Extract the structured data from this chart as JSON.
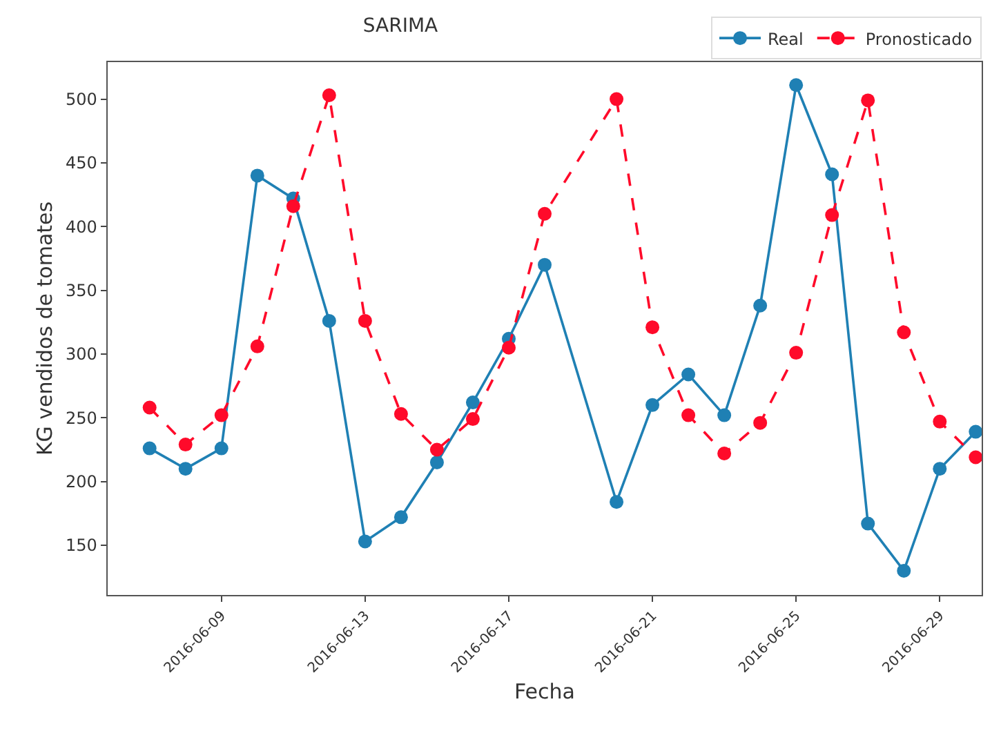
{
  "chart_data": {
    "type": "line",
    "title": "SARIMA",
    "xlabel": "Fecha",
    "ylabel": "KG vendidos de tomates",
    "x": [
      "2016-06-07",
      "2016-06-08",
      "2016-06-09",
      "2016-06-10",
      "2016-06-11",
      "2016-06-12",
      "2016-06-13",
      "2016-06-14",
      "2016-06-15",
      "2016-06-16",
      "2016-06-17",
      "2016-06-18",
      "2016-06-20",
      "2016-06-21",
      "2016-06-22",
      "2016-06-23",
      "2016-06-24",
      "2016-06-25",
      "2016-06-26",
      "2016-06-27",
      "2016-06-28",
      "2016-06-29",
      "2016-06-30"
    ],
    "series": [
      {
        "name": "Real",
        "color": "#1f80b4",
        "line_style": "solid",
        "values": [
          226,
          210,
          226,
          440,
          422,
          326,
          153,
          172,
          215,
          262,
          312,
          370,
          184,
          260,
          284,
          252,
          338,
          511,
          441,
          167,
          130,
          210,
          239
        ]
      },
      {
        "name": "Pronosticado",
        "color": "#ff0a2a",
        "line_style": "dashed",
        "values": [
          258,
          229,
          252,
          306,
          416,
          503,
          326,
          253,
          225,
          249,
          305,
          410,
          500,
          321,
          252,
          222,
          246,
          301,
          409,
          499,
          317,
          247,
          219
        ]
      }
    ],
    "xlim": [
      "2016-06-05T20:00",
      "2016-06-30T04:00"
    ],
    "xticks": [
      "2016-06-09",
      "2016-06-13",
      "2016-06-17",
      "2016-06-21",
      "2016-06-25",
      "2016-06-29"
    ],
    "ylim": [
      111,
      529
    ],
    "yticks": [
      150,
      200,
      250,
      300,
      350,
      400,
      450,
      500
    ],
    "grid": false,
    "legend": "top right",
    "marker": "circle"
  }
}
